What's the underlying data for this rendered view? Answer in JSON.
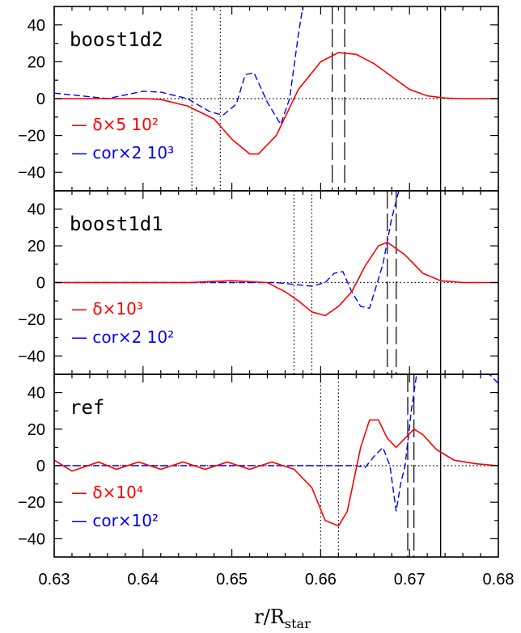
{
  "figure": {
    "xlabel_main": "r/R",
    "xlabel_sub": "star",
    "xlim": [
      0.63,
      0.68
    ],
    "xticks": [
      "0.63",
      "0.64",
      "0.65",
      "0.66",
      "0.67",
      "0.68"
    ],
    "ylim": [
      -50,
      50
    ],
    "yticks": [
      "40",
      "20",
      "0",
      "−20",
      "−40"
    ],
    "colors": {
      "delta": "#ff0000",
      "cor": "#0000ff",
      "axis": "#000000"
    }
  },
  "chart_data": [
    {
      "type": "line",
      "label": "boost1d2",
      "legend": [
        {
          "marker": "—",
          "text": "δ×5 10²"
        },
        {
          "marker": "—",
          "text": "cor×2 10³"
        }
      ],
      "dotted_vlines": [
        0.6455,
        0.6487
      ],
      "dashed_vlines": [
        0.6613,
        0.6627
      ],
      "solid_vlines": [
        0.6735
      ],
      "series": [
        {
          "x": [
            0.63,
            0.64,
            0.642,
            0.645,
            0.648,
            0.65,
            0.652,
            0.653,
            0.655,
            0.6575,
            0.66,
            0.662,
            0.664,
            0.666,
            0.668,
            0.67,
            0.672,
            0.674,
            0.676,
            0.68
          ],
          "y": [
            0,
            0,
            -0.5,
            -4,
            -11,
            -22,
            -30,
            -30,
            -20,
            5,
            20,
            25,
            24,
            19,
            12,
            5,
            1.5,
            0.3,
            0,
            0
          ]
        },
        {
          "x": [
            0.63,
            0.632,
            0.634,
            0.636,
            0.638,
            0.64,
            0.642,
            0.645,
            0.6475,
            0.649,
            0.6505,
            0.6515,
            0.6525,
            0.654,
            0.6555,
            0.6565,
            0.6575,
            0.658
          ],
          "y": [
            3,
            2,
            1,
            0,
            2,
            4,
            3.5,
            0,
            -7,
            -9,
            -3,
            13,
            14,
            -2,
            -14,
            0,
            35,
            50
          ]
        }
      ]
    },
    {
      "type": "line",
      "label": "boost1d1",
      "legend": [
        {
          "marker": "—",
          "text": "δ×10³"
        },
        {
          "marker": "—",
          "text": "cor×2 10²"
        }
      ],
      "dotted_vlines": [
        0.657,
        0.659
      ],
      "dashed_vlines": [
        0.6675,
        0.6685
      ],
      "solid_vlines": [
        0.6735
      ],
      "series": [
        {
          "x": [
            0.63,
            0.645,
            0.65,
            0.654,
            0.656,
            0.6575,
            0.659,
            0.6605,
            0.662,
            0.6635,
            0.665,
            0.6665,
            0.6675,
            0.6695,
            0.6715,
            0.6735,
            0.676,
            0.68
          ],
          "y": [
            0,
            0,
            1,
            0,
            -5,
            -10,
            -16,
            -18,
            -13,
            -5,
            9,
            20,
            22,
            15,
            5,
            1,
            0,
            0
          ]
        },
        {
          "x": [
            0.63,
            0.655,
            0.657,
            0.659,
            0.6605,
            0.6615,
            0.6625,
            0.6635,
            0.6645,
            0.6655,
            0.667,
            0.668,
            0.6688
          ],
          "y": [
            0,
            0,
            -1,
            -2,
            0,
            5,
            6,
            -5,
            -13,
            -14,
            10,
            35,
            50
          ]
        }
      ]
    },
    {
      "type": "line",
      "label": "ref",
      "legend": [
        {
          "marker": "—",
          "text": "δ×10⁴"
        },
        {
          "marker": "—",
          "text": "cor×10²"
        }
      ],
      "dotted_vlines": [
        0.66,
        0.662
      ],
      "dashed_vlines": [
        0.6698,
        0.6705
      ],
      "solid_vlines": [
        0.6735
      ],
      "series": [
        {
          "x": [
            0.63,
            0.632,
            0.635,
            0.637,
            0.6395,
            0.642,
            0.6445,
            0.647,
            0.6495,
            0.652,
            0.6545,
            0.657,
            0.659,
            0.6605,
            0.662,
            0.663,
            0.6645,
            0.6655,
            0.6665,
            0.6675,
            0.6685,
            0.6695,
            0.6705,
            0.6715,
            0.673,
            0.675,
            0.6775,
            0.68
          ],
          "y": [
            3,
            -3,
            2,
            -2,
            2,
            -2,
            2,
            -2,
            2,
            -2,
            2,
            -2,
            -12,
            -30,
            -33,
            -25,
            10,
            25,
            25,
            15,
            10,
            15,
            20,
            17,
            9,
            3,
            1,
            0
          ]
        },
        {
          "x": [
            0.63,
            0.664,
            0.665,
            0.666,
            0.667,
            0.6678,
            0.6685,
            0.669,
            0.6695,
            0.6702,
            0.6708,
            0.6712,
            0.6716,
            0.672,
            0.6725,
            0.673,
            0.674,
            0.676,
            0.678,
            0.679,
            0.68
          ],
          "y": [
            0,
            0,
            -1,
            5,
            10,
            0,
            -25,
            -10,
            0,
            30,
            50,
            50,
            50,
            50,
            50,
            50,
            50,
            50,
            50,
            50,
            45
          ]
        }
      ]
    }
  ]
}
